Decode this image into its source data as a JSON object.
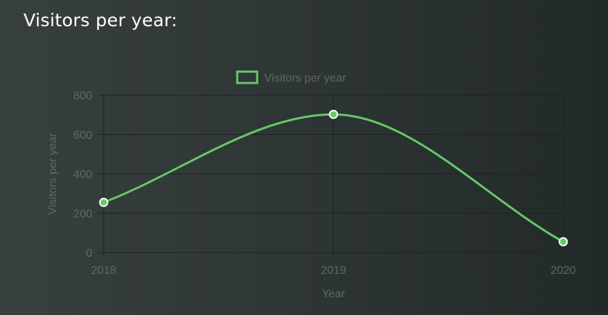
{
  "page": {
    "title": "Visitors per year:"
  },
  "colors": {
    "series": "#67c867",
    "grid": "#1c2221",
    "axis_text": "#5f6866",
    "point_border": "#ffffff"
  },
  "chart_data": {
    "type": "line",
    "curve": "smooth",
    "x": [
      "2018",
      "2019",
      "2020"
    ],
    "series": [
      {
        "name": "Visitors per year",
        "values": [
          255,
          702,
          55
        ]
      }
    ],
    "xlabel": "Year",
    "ylabel": "Visitors per year",
    "ylim": [
      0,
      800
    ],
    "yticks": [
      0,
      200,
      400,
      600,
      800
    ],
    "legend": "top-center",
    "grid": true
  }
}
